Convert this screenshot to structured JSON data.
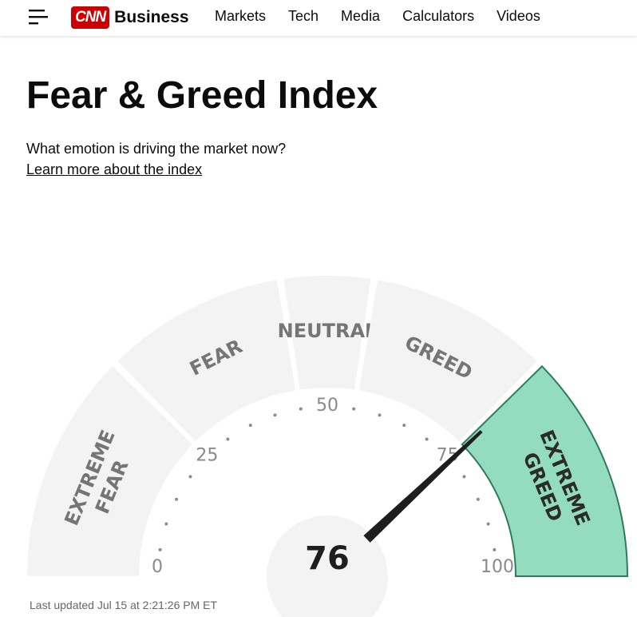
{
  "header": {
    "brand_logo": "CNN",
    "brand_section": "Business",
    "nav": [
      "Markets",
      "Tech",
      "Media",
      "Calculators",
      "Videos"
    ]
  },
  "page": {
    "title": "Fear & Greed Index",
    "subtitle": "What emotion is driving the market now?",
    "learn_more": "Learn more about the index"
  },
  "gauge": {
    "value": 76,
    "value_label": "76",
    "min": 0,
    "max": 100,
    "ticks": [
      "0",
      "25",
      "50",
      "75",
      "100"
    ],
    "segments": [
      {
        "label_lines": [
          "EXTREME",
          "FEAR"
        ],
        "from": 0,
        "to": 25
      },
      {
        "label_lines": [
          "FEAR"
        ],
        "from": 25,
        "to": 45
      },
      {
        "label_lines": [
          "NEUTRAL"
        ],
        "from": 45,
        "to": 55
      },
      {
        "label_lines": [
          "GREED"
        ],
        "from": 55,
        "to": 75
      },
      {
        "label_lines": [
          "EXTREME",
          "GREED"
        ],
        "from": 75,
        "to": 100
      }
    ],
    "active_segment": 4,
    "colors": {
      "segment": "#f3f3f3",
      "active_fill": "#93dcbf",
      "active_stroke": "#2f7a5e",
      "label": "#757575",
      "active_label": "#2b2b2b",
      "needle": "#1e1e1e",
      "dots": "#8c8c8c"
    }
  },
  "footer": {
    "last_updated": "Last updated Jul 15 at 2:21:26 PM ET"
  }
}
